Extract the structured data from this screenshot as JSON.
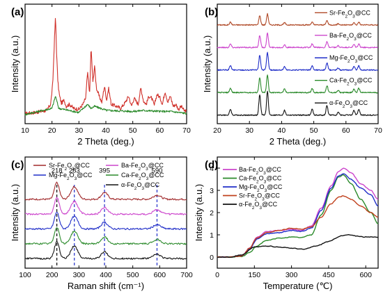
{
  "chart_data": [
    {
      "panel": "(a)",
      "type": "line",
      "xlabel": "2 Theta (deg.)",
      "ylabel": "Intensity (a.u.)",
      "xlim": [
        10,
        70
      ],
      "xticks": [
        "10",
        "20",
        "30",
        "40",
        "50",
        "60",
        "70"
      ],
      "yticks_shown": false,
      "series": [
        {
          "color": "#d0302a",
          "x": [
            10,
            14,
            18,
            19.5,
            20.3,
            20.8,
            21.3,
            21.7,
            22.2,
            22.8,
            23.5,
            24.5,
            25.3,
            26.5,
            28,
            30,
            31.5,
            32.5,
            33.2,
            34,
            34.5,
            35.2,
            35.8,
            36.5,
            37.5,
            38.5,
            39.5,
            40.3,
            41,
            42,
            44,
            45.5,
            47,
            48.5,
            49.5,
            50.5,
            52,
            53,
            54,
            55,
            56,
            57,
            58,
            59,
            60.2,
            61,
            62,
            63,
            64,
            65,
            66,
            67,
            68,
            69,
            70
          ],
          "y": [
            0.05,
            0.06,
            0.08,
            0.14,
            0.35,
            0.7,
            1.0,
            0.65,
            0.35,
            0.22,
            0.15,
            0.18,
            0.12,
            0.14,
            0.1,
            0.09,
            0.14,
            0.2,
            0.45,
            0.25,
            0.7,
            0.35,
            0.52,
            0.3,
            0.22,
            0.16,
            0.32,
            0.18,
            0.3,
            0.14,
            0.12,
            0.1,
            0.15,
            0.22,
            0.12,
            0.2,
            0.14,
            0.3,
            0.17,
            0.14,
            0.22,
            0.2,
            0.13,
            0.24,
            0.2,
            0.14,
            0.27,
            0.16,
            0.22,
            0.12,
            0.14,
            0.09,
            0.12,
            0.08,
            0.07
          ]
        },
        {
          "color": "#2a8a2a",
          "x": [
            10,
            20,
            21.3,
            22.5,
            30,
            33.2,
            34.5,
            35.8,
            40.3,
            50,
            54,
            60,
            64,
            70
          ],
          "y": [
            0.04,
            0.1,
            0.22,
            0.1,
            0.06,
            0.14,
            0.1,
            0.12,
            0.08,
            0.07,
            0.08,
            0.07,
            0.07,
            0.05
          ]
        }
      ]
    },
    {
      "panel": "(b)",
      "type": "line",
      "xlabel": "2 Theta (deg.)",
      "ylabel": "Intensity (a.u.)",
      "xlim": [
        20,
        70
      ],
      "xticks": [
        "20",
        "30",
        "40",
        "50",
        "60",
        "70"
      ],
      "yticks_shown": false,
      "peaks": [
        24.1,
        33.2,
        35.6,
        40.9,
        49.5,
        54.1,
        57.6,
        62.5,
        64.0
      ],
      "peak_heights": [
        0.25,
        0.85,
        1.0,
        0.2,
        0.25,
        0.4,
        0.12,
        0.2,
        0.25
      ],
      "series": [
        {
          "name": "Sr-Fe₂O₃@CC",
          "color": "#b04a28",
          "offset": 4.0,
          "scale": 0.35
        },
        {
          "name": "Ba-Fe₂O₃@CC",
          "color": "#cc44cc",
          "offset": 3.0,
          "scale": 0.45
        },
        {
          "name": "Mg-Fe₂O₃@CC",
          "color": "#1f2dc8",
          "offset": 2.0,
          "scale": 0.55
        },
        {
          "name": "Ca-Fe₂O₃@CC",
          "color": "#2a8a2a",
          "offset": 1.0,
          "scale": 0.55
        },
        {
          "name": "α-Fe₂O₃@CC",
          "color": "#111111",
          "offset": 0.0,
          "scale": 0.75
        }
      ]
    },
    {
      "panel": "(c)",
      "type": "line",
      "xlabel": "Raman shift (cm⁻¹)",
      "ylabel": "Intensity (a.u.)",
      "xlim": [
        100,
        700
      ],
      "xticks": [
        "100",
        "200",
        "300",
        "400",
        "500",
        "600",
        "700"
      ],
      "yticks_shown": false,
      "peak_labels": [
        {
          "x": 218,
          "text": "218"
        },
        {
          "x": 283,
          "text": "283"
        },
        {
          "x": 395,
          "text": "395"
        },
        {
          "x": 590,
          "text": "590"
        }
      ],
      "peaks": [
        218,
        283,
        395,
        590
      ],
      "peak_heights": [
        1.0,
        0.75,
        0.4,
        0.25
      ],
      "series": [
        {
          "name": "Sr-Fe₂O₃@CC",
          "color": "#a0282a",
          "offset": 4.0
        },
        {
          "name": "Ba-Fe₂O₃@CC",
          "color": "#cc44cc",
          "offset": 3.2
        },
        {
          "name": "Mg-Fe₂O₃@CC",
          "color": "#1f2dc8",
          "offset": 2.4
        },
        {
          "name": "Ca-Fe₂O₃@CC",
          "color": "#2a8a2a",
          "offset": 1.6
        },
        {
          "name": "α-Fe₂O₃@CC",
          "color": "#111111",
          "offset": 0.8
        }
      ]
    },
    {
      "panel": "(d)",
      "type": "line",
      "xlabel": "Temperature (℃)",
      "ylabel": "Intensity (a.u.)",
      "xlim": [
        0,
        650
      ],
      "ylim": [
        -0.5,
        4.5
      ],
      "xticks": [
        "0",
        "150",
        "300",
        "450",
        "600"
      ],
      "yticks": [
        "0",
        "1",
        "2",
        "3",
        "4"
      ],
      "series": [
        {
          "name": "Ba-Fe₂O₃@CC",
          "color": "#cc44cc",
          "x": [
            0,
            50,
            100,
            130,
            160,
            200,
            250,
            300,
            340,
            380,
            420,
            460,
            490,
            510,
            540,
            580,
            620,
            650
          ],
          "y": [
            0,
            0,
            0.05,
            0.4,
            0.9,
            1.15,
            1.2,
            1.25,
            1.2,
            1.4,
            2.2,
            3.2,
            3.85,
            4.0,
            3.8,
            3.3,
            3.0,
            2.6
          ]
        },
        {
          "name": "Ca-Fe₂O₃@CC",
          "color": "#2a8a2a",
          "x": [
            0,
            50,
            100,
            130,
            160,
            200,
            250,
            300,
            340,
            380,
            420,
            460,
            490,
            510,
            540,
            580,
            620,
            650
          ],
          "y": [
            0,
            0,
            0.03,
            0.2,
            0.5,
            0.75,
            0.85,
            0.9,
            0.88,
            1.0,
            1.9,
            3.0,
            3.6,
            3.7,
            3.3,
            2.6,
            2.0,
            1.5
          ]
        },
        {
          "name": "Mg-Fe₂O₃@CC",
          "color": "#1f2dc8",
          "x": [
            0,
            50,
            100,
            130,
            160,
            200,
            250,
            300,
            340,
            380,
            420,
            460,
            490,
            510,
            540,
            580,
            620,
            650
          ],
          "y": [
            0,
            0,
            0.05,
            0.35,
            0.8,
            1.05,
            1.1,
            1.2,
            1.15,
            1.3,
            2.1,
            3.1,
            3.65,
            3.75,
            3.5,
            3.1,
            2.8,
            2.3
          ]
        },
        {
          "name": "Sr-Fe₂O₃@CC",
          "color": "#c0401c",
          "x": [
            0,
            50,
            100,
            130,
            160,
            200,
            250,
            300,
            340,
            380,
            420,
            460,
            490,
            510,
            540,
            580,
            620,
            650
          ],
          "y": [
            0,
            0,
            0.05,
            0.4,
            0.85,
            1.1,
            1.2,
            1.3,
            1.25,
            1.35,
            1.8,
            2.4,
            2.7,
            2.75,
            2.6,
            2.3,
            2.0,
            1.8
          ]
        },
        {
          "name": "α-Fe₂O₃@CC",
          "color": "#111111",
          "x": [
            0,
            50,
            100,
            150,
            200,
            250,
            300,
            350,
            400,
            450,
            500,
            530,
            560,
            600,
            650
          ],
          "y": [
            0,
            0,
            0.1,
            0.45,
            0.5,
            0.45,
            0.4,
            0.35,
            0.5,
            0.7,
            0.95,
            1.0,
            0.95,
            0.9,
            0.9
          ]
        }
      ]
    }
  ]
}
